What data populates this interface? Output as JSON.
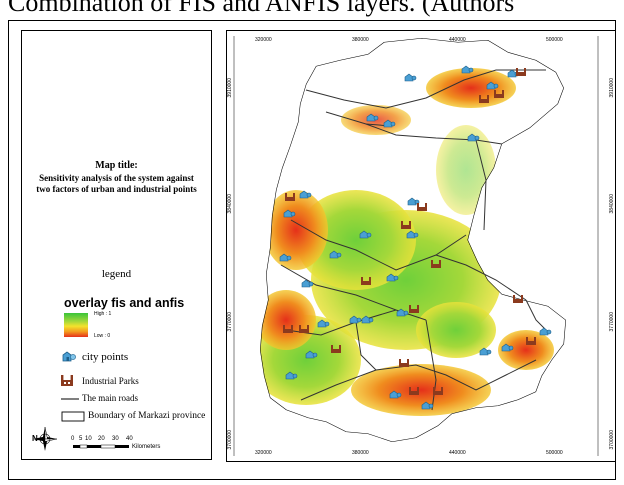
{
  "caption": "Combination of FIS and ANFIS layers. (Authors",
  "map_title": {
    "heading": "Map title:",
    "line1": "Sensitivity analysis of the system against",
    "line2": "two factors of urban and industrial points"
  },
  "legend": {
    "heading": "legend",
    "overlay_title": "overlay fis and anfis",
    "high_label": "High : 1",
    "low_label": "Low : 0",
    "ramp_colors": [
      "#39c43a",
      "#a4d83a",
      "#f3e32c",
      "#f39a1e",
      "#e5301a"
    ],
    "items": [
      {
        "icon": "city-point-icon",
        "label": "city points"
      },
      {
        "icon": "industrial-park-icon",
        "label": "Industrial Parks"
      },
      {
        "icon": "road-line-icon",
        "label": "The main roads"
      },
      {
        "icon": "boundary-box-icon",
        "label": "Boundary of Markazi province"
      }
    ]
  },
  "scale_bar": {
    "ticks": [
      "0",
      "5",
      "10",
      "20",
      "30",
      "40"
    ],
    "unit": "Kilometers"
  },
  "north_arrow": {
    "letter": "N",
    "icon": "north-arrow-icon"
  },
  "coordinates": {
    "top": [
      "320000",
      "380000",
      "440000",
      "500000"
    ],
    "bottom": [
      "320000",
      "380000",
      "440000",
      "500000"
    ],
    "left": [
      "3910000",
      "3840000",
      "3770000",
      "3700000"
    ],
    "right": [
      "3910000",
      "3840000",
      "3770000",
      "3700000"
    ]
  },
  "colors": {
    "high": "#39c43a",
    "mid": "#f3e32c",
    "low": "#e5301a",
    "city_point": "#3a8fc4",
    "industrial": "#8b3a1e",
    "road": "#333333"
  }
}
